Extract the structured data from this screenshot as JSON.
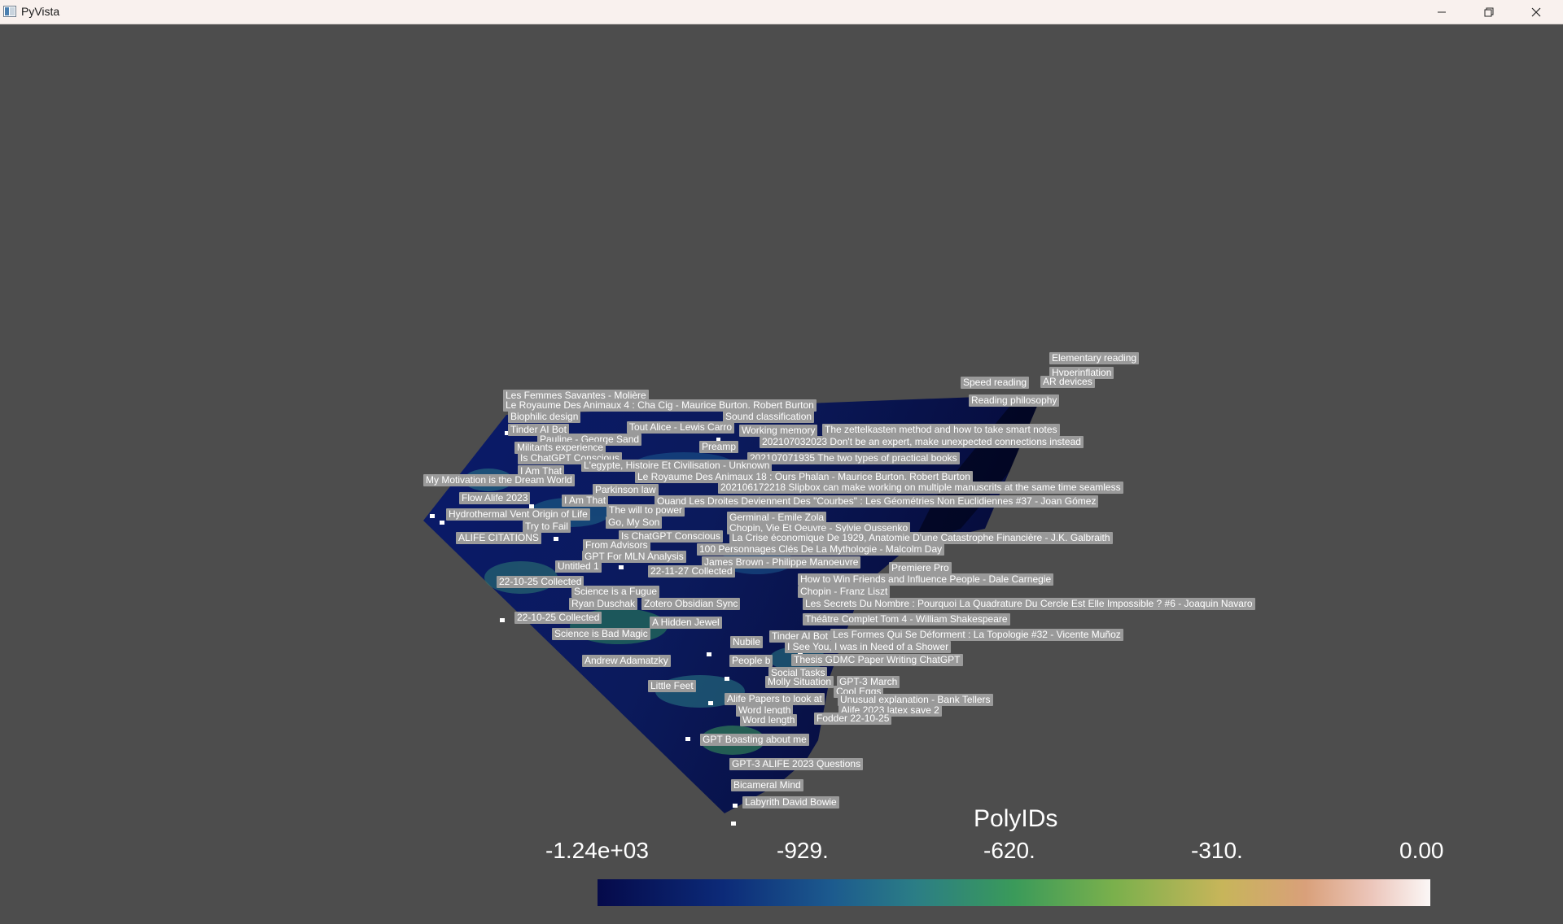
{
  "window": {
    "title": "PyVista",
    "icon": "pyvista-app-icon"
  },
  "controls": {
    "minimize": "minimize-icon",
    "maximize": "restore-icon",
    "close": "close-icon"
  },
  "scalar_bar": {
    "title": "PolyIDs",
    "ticks": [
      "-1.24e+03",
      "-929.",
      "-620.",
      "-310.",
      "0.00"
    ],
    "range": [
      -1240,
      0
    ],
    "colormap": [
      "#050a4a",
      "#1c5a8e",
      "#3a9a5a",
      "#c7b55a",
      "#fbf7f6"
    ]
  },
  "labels": [
    "Elementary reading",
    "Hyperinflation",
    "Speed reading",
    "AR devices",
    "Reading philosophy",
    "Les Femmes Savantes - Molière",
    "Le Royaume Des Animaux 4 : Cha Cig - Maurice Burton. Robert Burton",
    "Biophilic design",
    "Sound classification",
    "Tinder AI Bot",
    "Tout Alice - Lewis Carro",
    "Working memory",
    "The zettelkasten method and how to take smart notes",
    "Pauline - George Sand",
    "202107032023 Don't be an expert, make unexpected connections instead",
    "Militants experience",
    "Preamp",
    "Is ChatGPT Conscious",
    "202107071935 The two types of practical books",
    "L'egypte, Histoire Et Civilisation - Unknown",
    "I Am That",
    "Le Royaume Des Animaux 18 : Ours Phalan - Maurice Burton. Robert Burton",
    "My Motivation is the Dream World",
    "Parkinson law",
    "202106172218 Slipbox can make working on multiple manuscrits at the same time seamless",
    "Flow Alife 2023",
    "I Am That",
    "Quand Les Droites Deviennent Des \"Courbes\" : Les Géométries Non Euclidiennes #37 - Joan Gómez",
    "The will to power",
    "Hydrothermal Vent Origin of Life",
    "Germinal - Emile Zola",
    "Try to Fail",
    "Go, My Son",
    "Chopin, Vie Et Oeuvre - Sylvie Oussenko",
    "ALIFE CITATIONS",
    "Is ChatGPT Conscious",
    "La Crise économique De 1929, Anatomie D'une Catastrophe Financière - J.K. Galbraith",
    "From Advisors",
    "100 Personnages Clés De La Mythologie - Malcolm Day",
    "GPT For MLN Analysis",
    "Untitled 1",
    "James Brown - Philippe Manoeuvre",
    "Premiere Pro",
    "22-11-27 Collected",
    "22-10-25 Collected",
    "How to Win Friends and Influence People - Dale Carnegie",
    "Science is a Fugue",
    "Chopin - Franz Liszt",
    "Ryan Duschak",
    "Zotero Obsidian Sync",
    "Les Secrets Du Nombre : Pourquoi La Quadrature Du Cercle Est Elle Impossible ? #6 - Joaquin Navaro",
    "22-10-25 Collected",
    "Théâtre Complet Tom 4 - William Shakespeare",
    "A Hidden Jewel",
    "Science is Bad Magic",
    "Tinder AI Bot",
    "Les Formes Qui Se Déforment : La Topologie #32 - Vicente Muñoz",
    "Nubile",
    "I See You, I was in Need of a Shower",
    "Andrew Adamatzky",
    "People b",
    "Thesis GDMC Paper Writing ChatGPT",
    "Social Tasks",
    "Molly Situation",
    "GPT-3 March",
    "Little Feet",
    "Cool Eggs",
    "Alife Papers to look at",
    "Unusual explanation - Bank Tellers",
    "Word length",
    "Alife 2023 latex save 2",
    "Word length",
    "Fodder 22-10-25",
    "GPT Boasting about me",
    "GPT-3 ALIFE 2023 Questions",
    "Bicameral Mind",
    "Labyrith David Bowie"
  ]
}
